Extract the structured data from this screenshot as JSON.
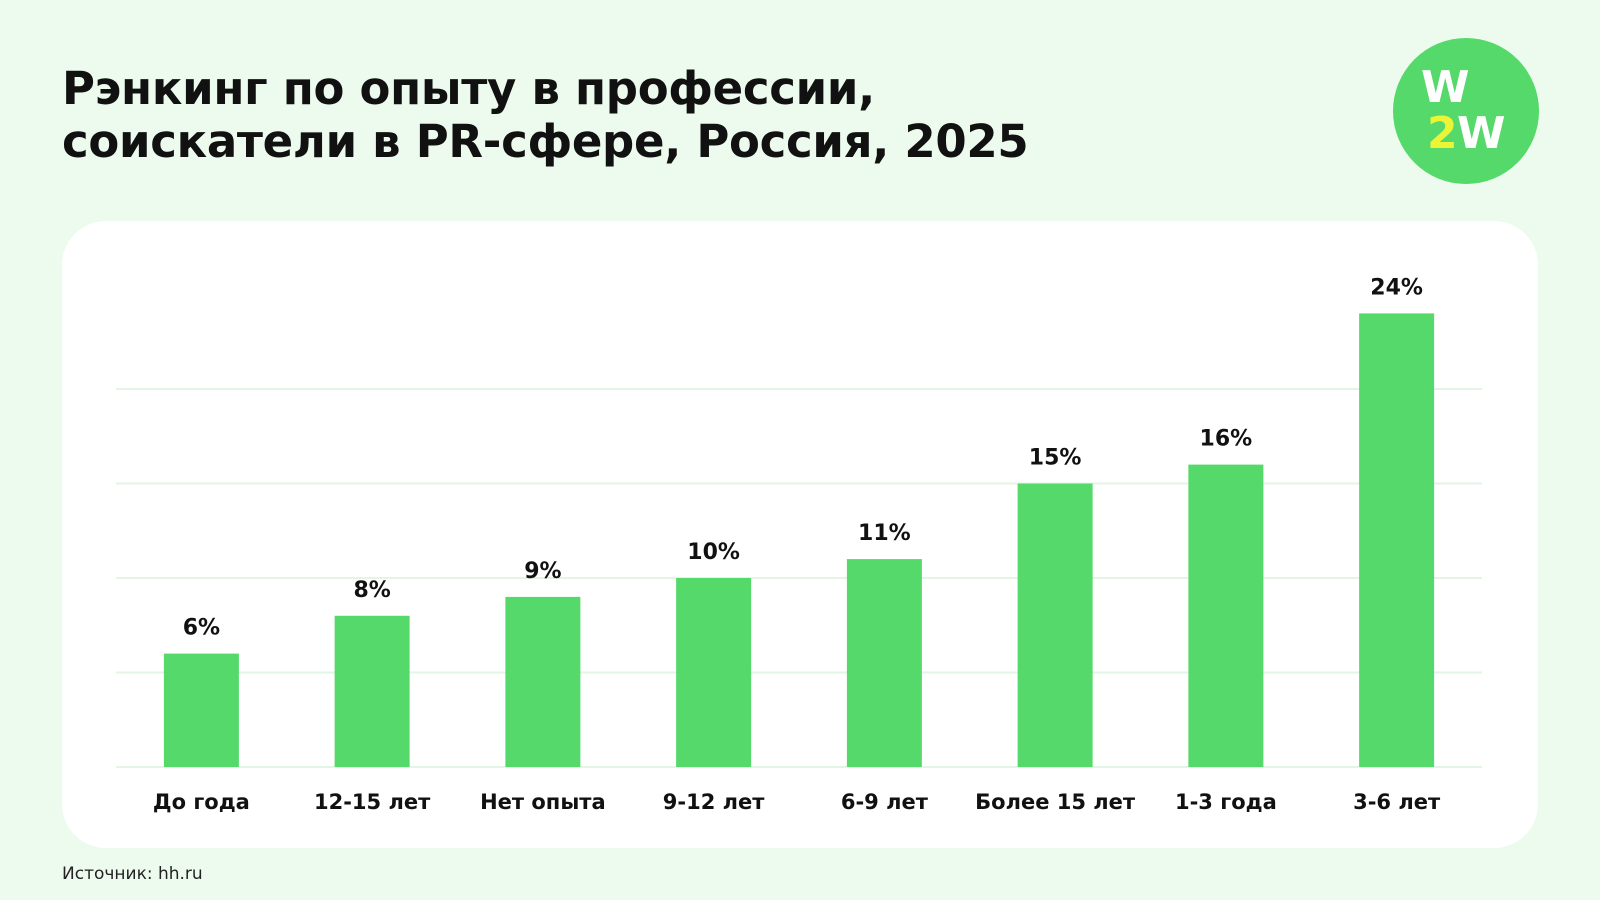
{
  "header": {
    "title_line1": "Рэнкинг по опыту в профессии,",
    "title_line2": "соискатели в PR-сфере, Россия, 2025"
  },
  "logo": {
    "line1": "W",
    "line2_digit": "2",
    "line2_letter": "W",
    "colors": {
      "background": "#55d96a",
      "letters": "#ffffff",
      "digit": "#ecf535"
    }
  },
  "chart_data": {
    "type": "bar",
    "categories": [
      "До года",
      "12-15 лет",
      "Нет опыта",
      "9-12 лет",
      "6-9 лет",
      "Более 15 лет",
      "1-3 года",
      "3-6 лет"
    ],
    "values": [
      6,
      8,
      9,
      10,
      11,
      15,
      16,
      24
    ],
    "data_labels": [
      "6%",
      "8%",
      "9%",
      "10%",
      "11%",
      "15%",
      "16%",
      "24%"
    ],
    "unit": "%",
    "ylim": [
      0,
      24
    ],
    "gridlines": [
      0,
      5,
      10,
      15,
      20
    ],
    "grid": true,
    "legend": "none",
    "bar_color": "#55d96a",
    "grid_color": "#e3f5e5"
  },
  "footer": {
    "source": "Источник: hh.ru"
  }
}
